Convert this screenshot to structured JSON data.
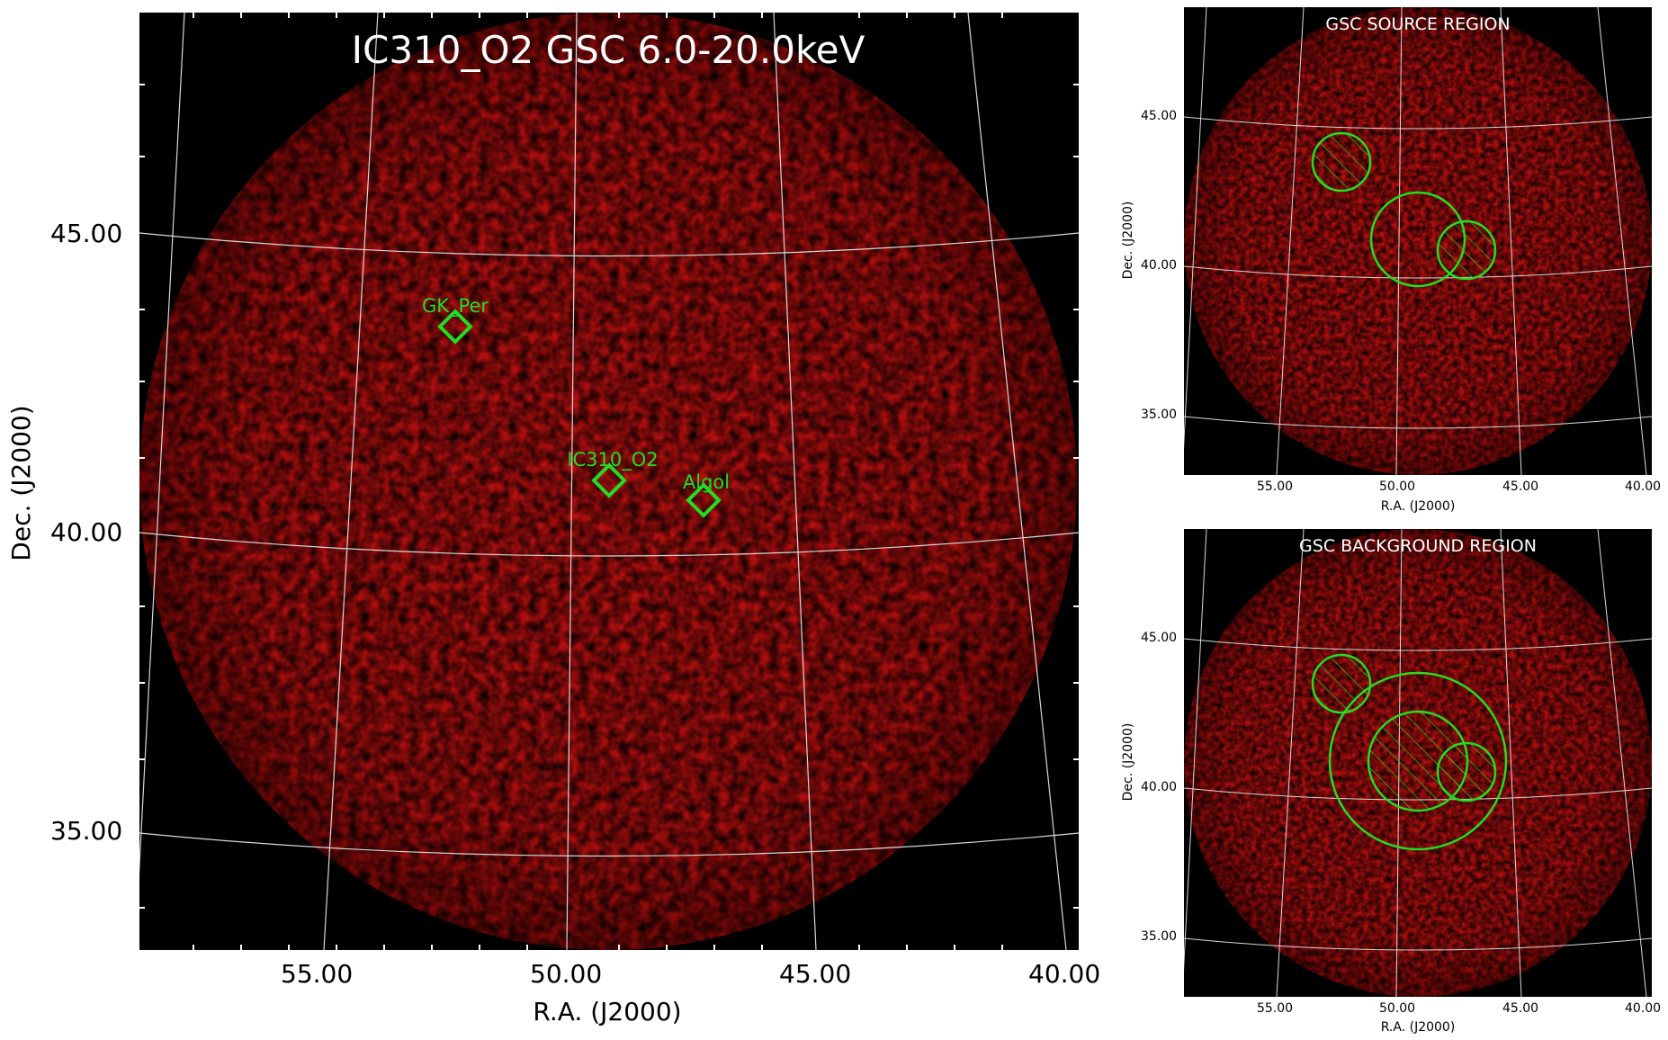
{
  "main_image": {
    "title": "IC310_O2 GSC 6.0-20.0keV",
    "xlabel": "R.A. (J2000)",
    "ylabel": "Dec. (J2000)",
    "x_ticks": [
      "55.00",
      "50.00",
      "45.00",
      "40.00"
    ],
    "y_ticks": [
      "45.00",
      "40.00",
      "35.00"
    ],
    "sources": [
      {
        "name": "GK_Per",
        "ra": 52.8,
        "dec": 43.9
      },
      {
        "name": "IC310_O2",
        "ra": 49.2,
        "dec": 41.3
      },
      {
        "name": "Algol",
        "ra": 47.0,
        "dec": 40.9
      }
    ]
  },
  "source_panel": {
    "title": "GSC SOURCE REGION",
    "xlabel": "R.A. (J2000)",
    "ylabel": "Dec. (J2000)",
    "x_ticks": [
      "55.00",
      "50.00",
      "45.00",
      "40.00"
    ],
    "y_ticks": [
      "45.00",
      "40.00",
      "35.00"
    ]
  },
  "background_panel": {
    "title": "GSC BACKGROUND REGION",
    "xlabel": "R.A. (J2000)",
    "ylabel": "Dec. (J2000)",
    "x_ticks": [
      "55.00",
      "50.00",
      "45.00",
      "40.00"
    ],
    "y_ticks": [
      "45.00",
      "40.00",
      "35.00"
    ]
  },
  "colors": {
    "background": "#000000",
    "emission": "#b01010",
    "region": "#22dd22",
    "grid": "#d8d8d8"
  }
}
